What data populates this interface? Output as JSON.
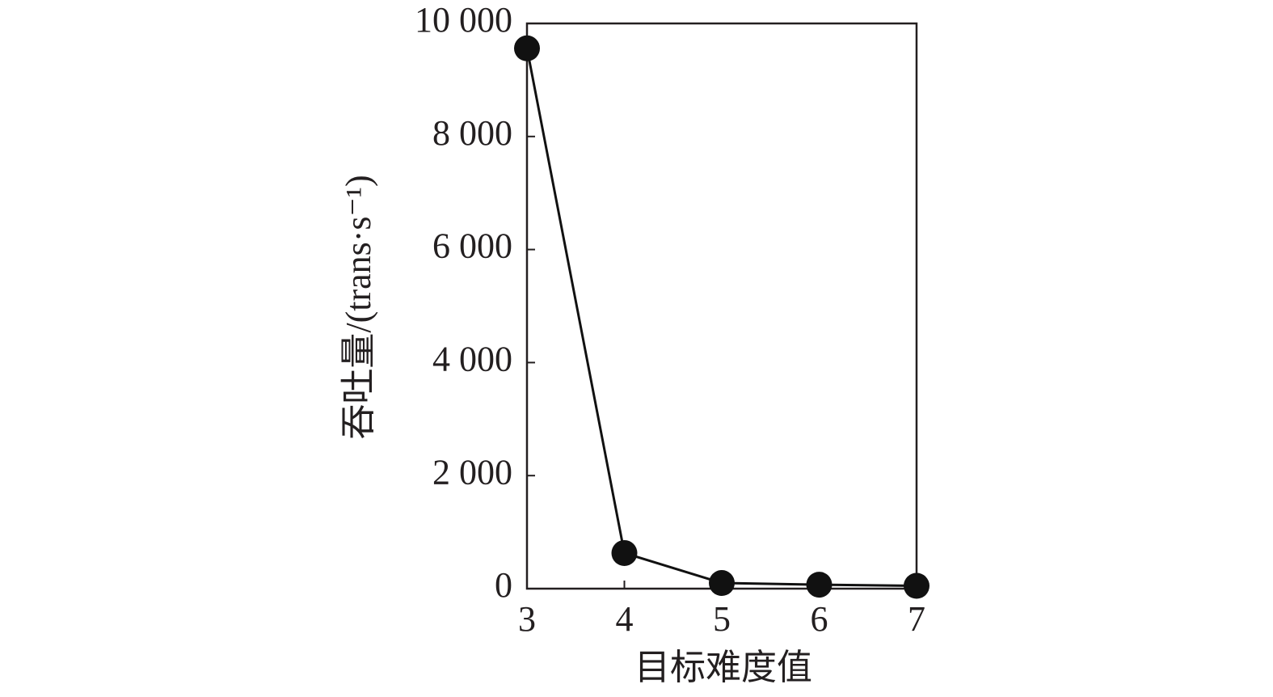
{
  "chart_data": {
    "type": "line",
    "xlabel": "目标难度值",
    "ylabel": "吞吐量/(trans·s⁻¹)",
    "x": [
      3,
      4,
      5,
      6,
      7
    ],
    "values": [
      9560,
      630,
      100,
      70,
      50
    ],
    "color": "#111111",
    "xlim": [
      3,
      7
    ],
    "xticks": [
      3,
      4,
      5,
      6,
      7
    ],
    "ylim": [
      0,
      10000
    ],
    "yticks": [
      0,
      {
        "value": 2000,
        "label": "2 000"
      },
      {
        "value": 4000,
        "label": "4 000"
      },
      {
        "value": 6000,
        "label": "6 000"
      },
      {
        "value": 8000,
        "label": "8 000"
      },
      {
        "value": 10000,
        "label": "10 000"
      }
    ]
  }
}
